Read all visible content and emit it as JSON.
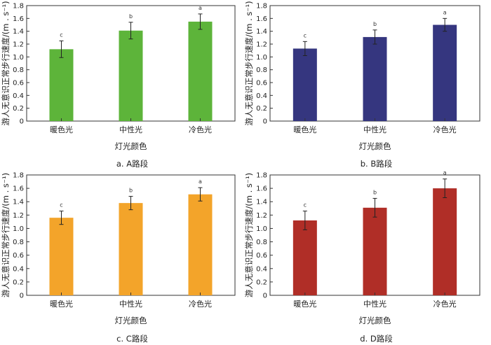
{
  "chart_data": [
    {
      "type": "bar",
      "caption": "a. A路段",
      "categories": [
        "暖色光",
        "中性光",
        "冷色光"
      ],
      "values": [
        1.12,
        1.41,
        1.55
      ],
      "errors": [
        0.13,
        0.13,
        0.12
      ],
      "significance": [
        "c",
        "b",
        "a"
      ],
      "color": "#5db43a",
      "xlabel": "灯光颜色",
      "ylabel": "游人无意识正常步行速度/(m . s⁻¹)",
      "ylim": [
        0,
        1.8
      ],
      "yticks": [
        "0",
        "0.2",
        "0.4",
        "0.6",
        "0.8",
        "1.0",
        "1.2",
        "1.4",
        "1.6",
        "1.8"
      ]
    },
    {
      "type": "bar",
      "caption": "b. B路段",
      "categories": [
        "暖色光",
        "中性光",
        "冷色光"
      ],
      "values": [
        1.13,
        1.31,
        1.5
      ],
      "errors": [
        0.11,
        0.11,
        0.1
      ],
      "significance": [
        "c",
        "b",
        "a"
      ],
      "color": "#35367f",
      "xlabel": "灯光颜色",
      "ylabel": "游人无意识正常步行速度/(m . s⁻¹)",
      "ylim": [
        0,
        1.8
      ],
      "yticks": [
        "0",
        "0.2",
        "0.4",
        "0.6",
        "0.8",
        "1.0",
        "1.2",
        "1.4",
        "1.6",
        "1.8"
      ]
    },
    {
      "type": "bar",
      "caption": "c. C路段",
      "categories": [
        "暖色光",
        "中性光",
        "冷色光"
      ],
      "values": [
        1.16,
        1.38,
        1.51
      ],
      "errors": [
        0.1,
        0.1,
        0.1
      ],
      "significance": [
        "c",
        "b",
        "a"
      ],
      "color": "#f3a42a",
      "xlabel": "灯光颜色",
      "ylabel": "游人无意识正常步行速度/(m . s⁻¹)",
      "ylim": [
        0,
        1.8
      ],
      "yticks": [
        "0",
        "0.2",
        "0.4",
        "0.6",
        "0.8",
        "1.0",
        "1.2",
        "1.4",
        "1.6",
        "1.8"
      ]
    },
    {
      "type": "bar",
      "caption": "d. D路段",
      "categories": [
        "暖色光",
        "中性光",
        "冷色光"
      ],
      "values": [
        1.12,
        1.31,
        1.6
      ],
      "errors": [
        0.14,
        0.14,
        0.14
      ],
      "significance": [
        "c",
        "b",
        "a"
      ],
      "color": "#b02e27",
      "xlabel": "灯光颜色",
      "ylabel": "游人无意识正常步行速度/(m . s⁻¹)",
      "ylim": [
        0,
        1.8
      ],
      "yticks": [
        "0",
        "0.2",
        "0.4",
        "0.6",
        "0.8",
        "1.0",
        "1.2",
        "1.4",
        "1.6",
        "1.8"
      ]
    }
  ]
}
